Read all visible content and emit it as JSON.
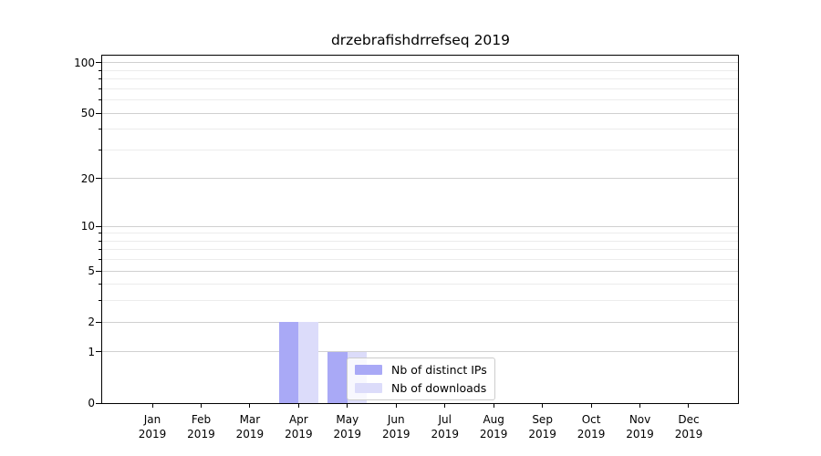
{
  "title": "drzebrafishdrrefseq 2019",
  "colors": {
    "distinct_ips": "#a9a9f6",
    "downloads": "#dcdcfa",
    "grid_major": "#d0d0d0",
    "grid_minor": "#ececec",
    "axis": "#000000",
    "legend_border": "#cccccc"
  },
  "legend": {
    "items": [
      {
        "label": "Nb of distinct IPs",
        "series_index": 0
      },
      {
        "label": "Nb of downloads",
        "series_index": 1
      }
    ]
  },
  "axes": {
    "y": {
      "tick_labels": [
        "100",
        "50",
        "20",
        "10",
        "5",
        "2",
        "1",
        "0"
      ],
      "tick_values": [
        100,
        50,
        20,
        10,
        5,
        2,
        1,
        0
      ]
    },
    "x": {
      "ticks": [
        {
          "month": "Jan",
          "year": "2019"
        },
        {
          "month": "Feb",
          "year": "2019"
        },
        {
          "month": "Mar",
          "year": "2019"
        },
        {
          "month": "Apr",
          "year": "2019"
        },
        {
          "month": "May",
          "year": "2019"
        },
        {
          "month": "Jun",
          "year": "2019"
        },
        {
          "month": "Jul",
          "year": "2019"
        },
        {
          "month": "Aug",
          "year": "2019"
        },
        {
          "month": "Sep",
          "year": "2019"
        },
        {
          "month": "Oct",
          "year": "2019"
        },
        {
          "month": "Nov",
          "year": "2019"
        },
        {
          "month": "Dec",
          "year": "2019"
        }
      ]
    }
  },
  "chart_data": {
    "type": "bar",
    "title": "drzebrafishdrrefseq 2019",
    "categories": [
      "Jan 2019",
      "Feb 2019",
      "Mar 2019",
      "Apr 2019",
      "May 2019",
      "Jun 2019",
      "Jul 2019",
      "Aug 2019",
      "Sep 2019",
      "Oct 2019",
      "Nov 2019",
      "Dec 2019"
    ],
    "series": [
      {
        "name": "Nb of distinct IPs",
        "color": "#a9a9f6",
        "values": [
          0,
          0,
          0,
          2,
          1,
          0,
          0,
          0,
          0,
          0,
          0,
          0
        ]
      },
      {
        "name": "Nb of downloads",
        "color": "#dcdcfa",
        "values": [
          0,
          0,
          0,
          2,
          1,
          0,
          0,
          0,
          0,
          0,
          0,
          0
        ]
      }
    ],
    "xlabel": "",
    "ylabel": "",
    "yscale": "log1p",
    "yticks": [
      0,
      1,
      2,
      5,
      10,
      20,
      50,
      100
    ],
    "yticks_minor": [
      3,
      4,
      6,
      7,
      8,
      9,
      30,
      40,
      60,
      70,
      80,
      90
    ],
    "ylim": [
      0,
      112
    ],
    "grid": "horizontal",
    "legend_position": "lower right inside, over May bars"
  }
}
